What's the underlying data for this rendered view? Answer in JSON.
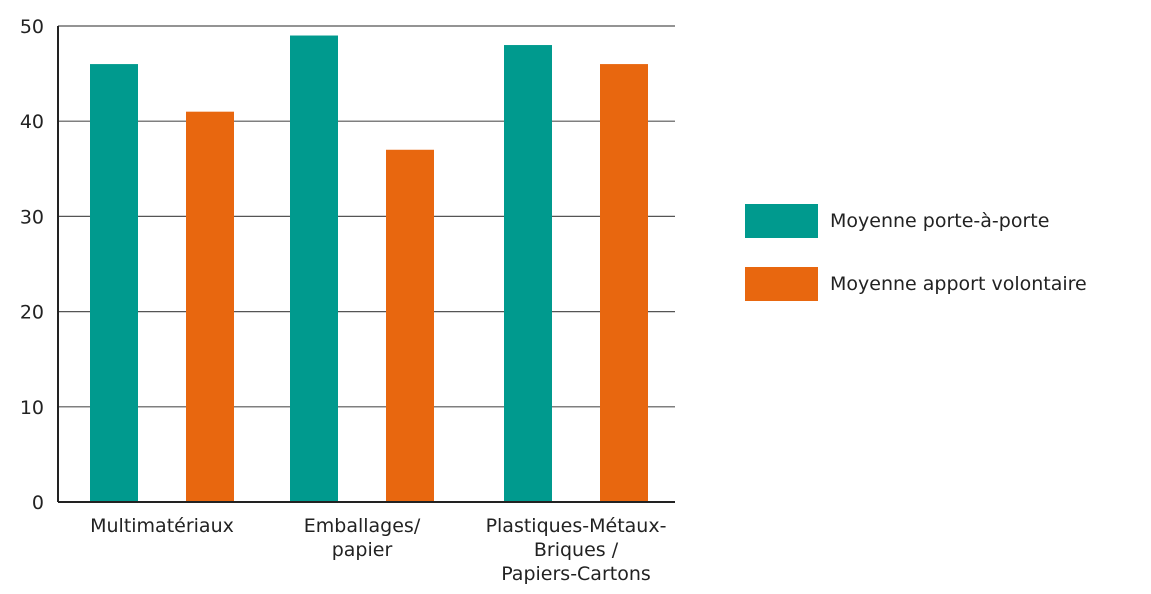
{
  "chart_data": {
    "type": "bar",
    "categories": [
      [
        "Multimatériaux"
      ],
      [
        "Emballages/",
        "papier"
      ],
      [
        "Plastiques-Métaux-",
        "Briques /",
        "Papiers-Cartons"
      ]
    ],
    "series": [
      {
        "name": "Moyenne porte-à-porte",
        "color": "#009a8e",
        "values": [
          46,
          49,
          48
        ]
      },
      {
        "name": "Moyenne apport volontaire",
        "color": "#e8670f",
        "values": [
          41,
          37,
          46
        ]
      }
    ],
    "yticks": [
      "0",
      "10",
      "20",
      "30",
      "40",
      "50"
    ],
    "ylim": [
      0,
      50
    ],
    "grid": true,
    "legend_position": "right"
  }
}
